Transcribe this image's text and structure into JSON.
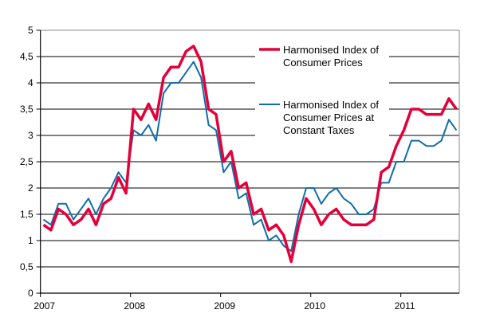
{
  "chart_data": {
    "type": "line",
    "title": "",
    "xlabel": "",
    "ylabel": "",
    "ylim": [
      0,
      5
    ],
    "y_ticks": [
      "0",
      "0,5",
      "1",
      "1,5",
      "2",
      "2,5",
      "3",
      "3,5",
      "4",
      "4,5",
      "5"
    ],
    "x_ticks": [
      "2007",
      "2008",
      "2009",
      "2010",
      "2011"
    ],
    "x_start": "2007-01",
    "x_frequency": "monthly",
    "grid": true,
    "legend_placement": "top-right",
    "series": [
      {
        "name": "Harmonised Index of Consumer Prices",
        "color": "#e4003a",
        "values": [
          1.3,
          1.2,
          1.6,
          1.5,
          1.3,
          1.4,
          1.6,
          1.3,
          1.7,
          1.8,
          2.2,
          1.9,
          3.5,
          3.3,
          3.6,
          3.3,
          4.1,
          4.3,
          4.3,
          4.6,
          4.7,
          4.4,
          3.5,
          3.4,
          2.5,
          2.7,
          2.0,
          2.1,
          1.5,
          1.6,
          1.2,
          1.3,
          1.1,
          0.6,
          1.3,
          1.8,
          1.6,
          1.3,
          1.5,
          1.6,
          1.4,
          1.3,
          1.3,
          1.3,
          1.4,
          2.3,
          2.4,
          2.8,
          3.1,
          3.5,
          3.5,
          3.4,
          3.4,
          3.4,
          3.7,
          3.5
        ]
      },
      {
        "name": "Harmonised Index of Consumer Prices at Constant Taxes",
        "name_lines": [
          "Harmonised Index of",
          "Consumer Prices at",
          "Constant Taxes"
        ],
        "color": "#0f6ea8",
        "values": [
          1.4,
          1.3,
          1.7,
          1.7,
          1.4,
          1.6,
          1.8,
          1.5,
          1.8,
          2.0,
          2.3,
          2.1,
          3.1,
          3.0,
          3.2,
          2.9,
          3.8,
          4.0,
          4.0,
          4.2,
          4.4,
          4.1,
          3.2,
          3.1,
          2.3,
          2.5,
          1.8,
          1.9,
          1.3,
          1.4,
          1.0,
          1.1,
          0.9,
          0.8,
          1.5,
          2.0,
          2.0,
          1.7,
          1.9,
          2.0,
          1.8,
          1.7,
          1.5,
          1.5,
          1.6,
          2.1,
          2.1,
          2.5,
          2.5,
          2.9,
          2.9,
          2.8,
          2.8,
          2.9,
          3.3,
          3.1
        ]
      }
    ],
    "legend_lines": [
      [
        "Harmonised Index of",
        "Consumer Prices"
      ],
      [
        "Harmonised Index of",
        "Consumer Prices at",
        "Constant Taxes"
      ]
    ]
  }
}
